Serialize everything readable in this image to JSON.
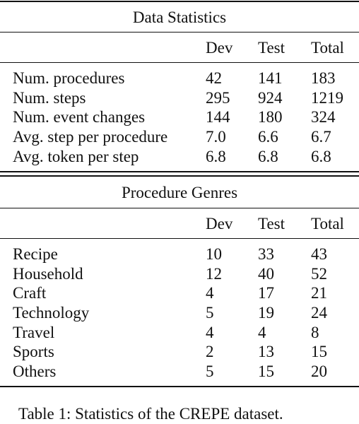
{
  "tables": [
    {
      "title": "Data Statistics",
      "columns": [
        "",
        "Dev",
        "Test",
        "Total"
      ],
      "rows": [
        [
          "Num. procedures",
          "42",
          "141",
          "183"
        ],
        [
          "Num. steps",
          "295",
          "924",
          "1219"
        ],
        [
          "Num. event changes",
          "144",
          "180",
          "324"
        ],
        [
          "Avg. step per procedure",
          "7.0",
          "6.6",
          "6.7"
        ],
        [
          "Avg. token per step",
          "6.8",
          "6.8",
          "6.8"
        ]
      ]
    },
    {
      "title": "Procedure Genres",
      "columns": [
        "",
        "Dev",
        "Test",
        "Total"
      ],
      "rows": [
        [
          "Recipe",
          "10",
          "33",
          "43"
        ],
        [
          "Household",
          "12",
          "40",
          "52"
        ],
        [
          "Craft",
          "4",
          "17",
          "21"
        ],
        [
          "Technology",
          "5",
          "19",
          "24"
        ],
        [
          "Travel",
          "4",
          "4",
          "8"
        ],
        [
          "Sports",
          "2",
          "13",
          "15"
        ],
        [
          "Others",
          "5",
          "15",
          "20"
        ]
      ]
    }
  ],
  "caption": "Table 1: Statistics of the CREPE dataset."
}
